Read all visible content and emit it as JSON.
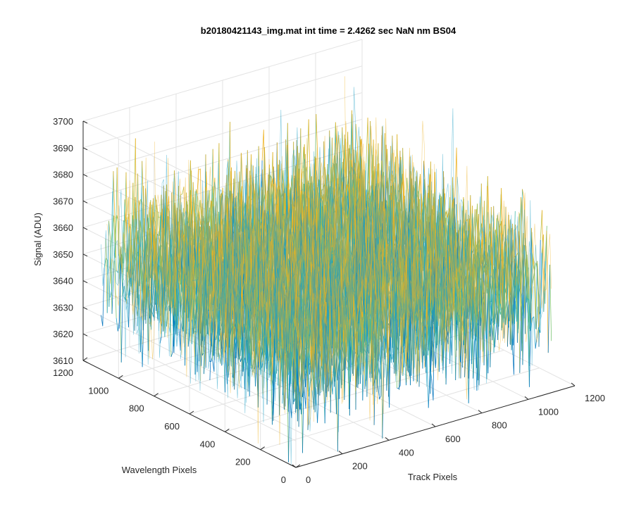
{
  "chart_data": {
    "type": "surface3d",
    "title": "b20180421143_img.mat int time = 2.4262 sec  NaN nm BS04",
    "xlabel": "Track Pixels",
    "ylabel": "Wavelength Pixels",
    "zlabel": "Signal (ADU)",
    "xlim": [
      0,
      1200
    ],
    "ylim": [
      0,
      1200
    ],
    "zlim": [
      3610,
      3700
    ],
    "x_ticks": [
      "0",
      "200",
      "400",
      "600",
      "800",
      "1000",
      "1200"
    ],
    "y_ticks": [
      "0",
      "200",
      "400",
      "600",
      "800",
      "1000",
      "1200"
    ],
    "z_ticks": [
      "3610",
      "3620",
      "3630",
      "3640",
      "3650",
      "3660",
      "3670",
      "3680",
      "3690",
      "3700"
    ],
    "x_range": [
      1,
      1100
    ],
    "y_range": [
      1,
      1100
    ],
    "signal_mean": 3650,
    "signal_spread": [
      3625,
      3678
    ],
    "grid": true,
    "colors": [
      "#0072BD",
      "#1B9FC4",
      "#3CB6A6",
      "#73C16B",
      "#B4C24A",
      "#EDB120"
    ]
  }
}
